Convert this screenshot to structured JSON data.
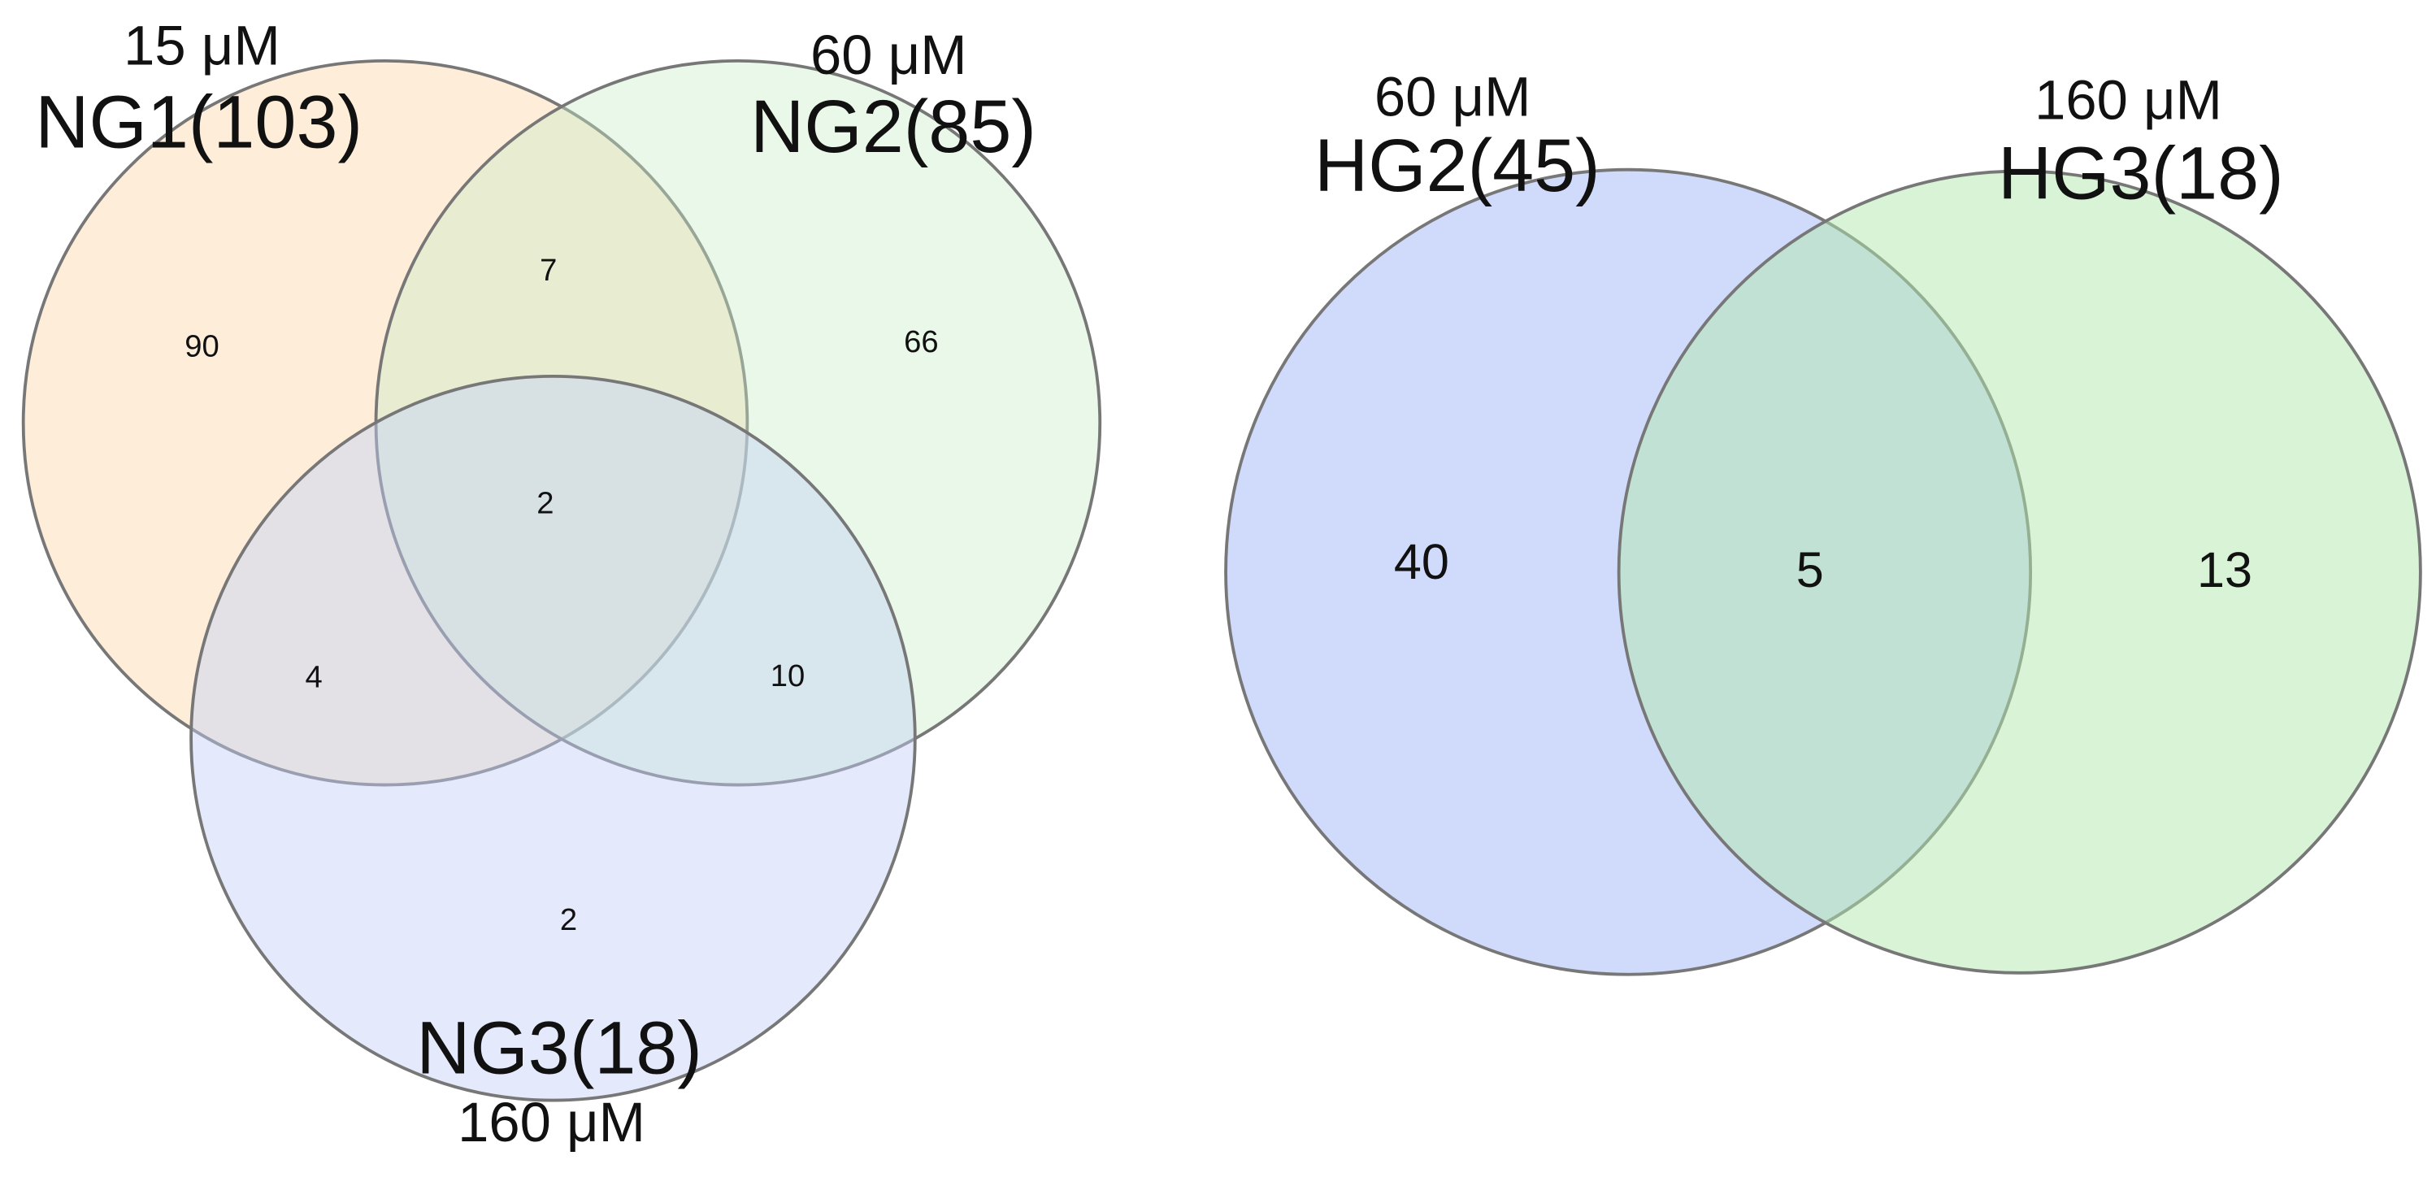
{
  "diagrams": [
    {
      "sets": [
        {
          "concentration": "15 μM",
          "label": "NG1(103)"
        },
        {
          "concentration": "60 μM",
          "label": "NG2(85)"
        },
        {
          "concentration": "160 μM",
          "label": "NG3(18)"
        }
      ],
      "regions": [
        90,
        7,
        66,
        2,
        4,
        10,
        2
      ]
    },
    {
      "sets": [
        {
          "concentration": "60 μM",
          "label": "HG2(45)"
        },
        {
          "concentration": "160 μM",
          "label": "HG3(18)"
        }
      ],
      "regions": [
        40,
        5,
        13
      ]
    }
  ]
}
